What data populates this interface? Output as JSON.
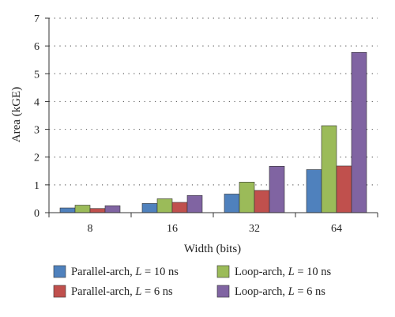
{
  "chart_data": {
    "type": "bar",
    "title": "",
    "xlabel": "Width (bits)",
    "ylabel": "Area (kGE)",
    "categories": [
      "8",
      "16",
      "32",
      "64"
    ],
    "ylim": [
      0,
      7
    ],
    "yticks": [
      "0",
      "1",
      "2",
      "3",
      "4",
      "5",
      "6",
      "7"
    ],
    "grid": "horizontal dotted",
    "legend_position": "bottom",
    "series": [
      {
        "name": "Parallel-arch,",
        "var": "L",
        "rest": " = 10 ns",
        "color": "#4f81bd",
        "values": [
          0.17,
          0.33,
          0.67,
          1.55
        ]
      },
      {
        "name": "Loop-arch,",
        "var": "L",
        "rest": " = 10 ns",
        "color": "#9bbb59",
        "values": [
          0.27,
          0.5,
          1.1,
          3.13
        ]
      },
      {
        "name": "Parallel-arch,",
        "var": "L",
        "rest": " = 6 ns",
        "color": "#c0504d",
        "values": [
          0.15,
          0.37,
          0.8,
          1.68
        ]
      },
      {
        "name": "Loop-arch,",
        "var": "L",
        "rest": " = 6 ns",
        "color": "#8064a2",
        "values": [
          0.25,
          0.62,
          1.67,
          5.77
        ]
      }
    ]
  }
}
